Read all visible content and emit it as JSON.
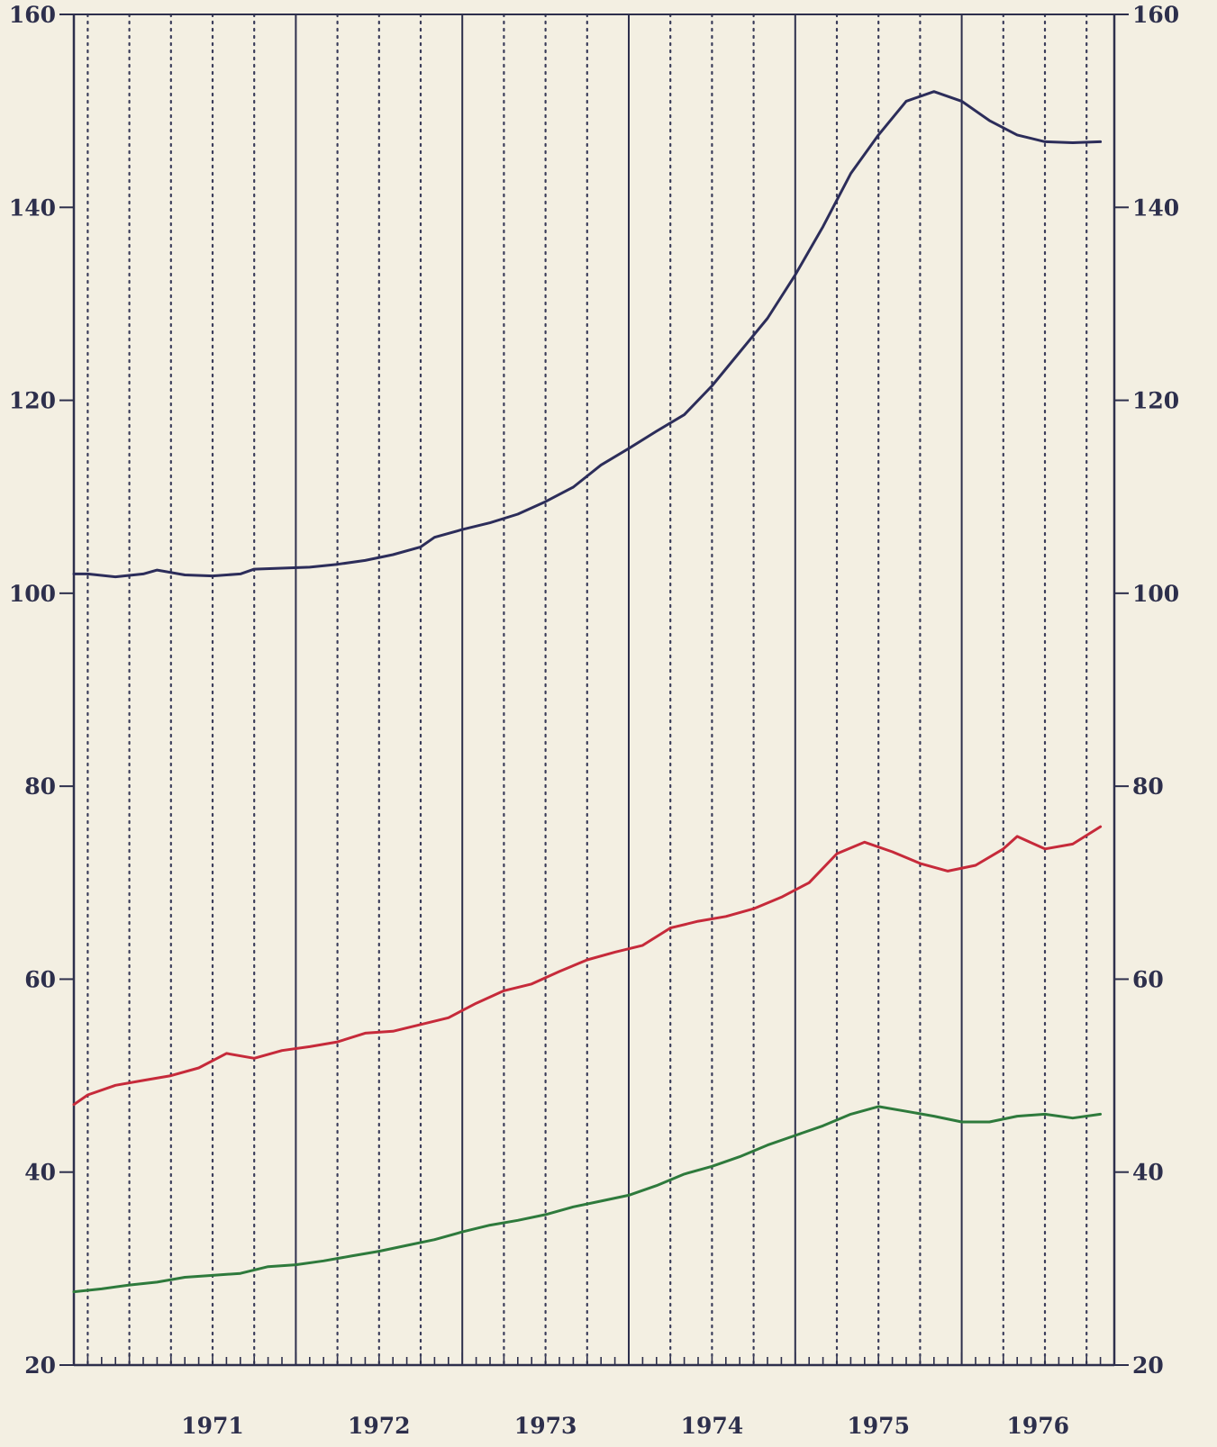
{
  "chart_data": {
    "type": "line",
    "title": "",
    "xlabel": "",
    "ylabel": "",
    "ylim": [
      20,
      160
    ],
    "y_ticks": [
      "20",
      "40",
      "60",
      "80",
      "100",
      "120",
      "140",
      "160"
    ],
    "y_axis_sides": "both",
    "x_start": "1970-09",
    "x_end": "1976-12",
    "year_labels": [
      "1971",
      "1972",
      "1973",
      "1974",
      "1975",
      "1976"
    ],
    "year_boundaries": [
      "1972-01",
      "1973-01",
      "1974-01",
      "1975-01",
      "1976-01"
    ],
    "quarter_gridlines": "dotted",
    "grid": true,
    "legend": "none",
    "colors": {
      "background": "#f3efe2",
      "axis": "#2d2f4c",
      "grid": "#3a3c5a"
    },
    "series": [
      {
        "color": "#2c2d5a",
        "points": [
          [
            "1970-09",
            102.0
          ],
          [
            "1970-10",
            102.0
          ],
          [
            "1970-12",
            101.7
          ],
          [
            "1971-02",
            102.0
          ],
          [
            "1971-03",
            102.4
          ],
          [
            "1971-05",
            101.9
          ],
          [
            "1971-07",
            101.8
          ],
          [
            "1971-09",
            102.0
          ],
          [
            "1971-10",
            102.5
          ],
          [
            "1971-12",
            102.6
          ],
          [
            "1972-02",
            102.7
          ],
          [
            "1972-04",
            103.0
          ],
          [
            "1972-06",
            103.4
          ],
          [
            "1972-08",
            104.0
          ],
          [
            "1972-10",
            104.8
          ],
          [
            "1972-11",
            105.8
          ],
          [
            "1973-01",
            106.6
          ],
          [
            "1973-03",
            107.3
          ],
          [
            "1973-05",
            108.2
          ],
          [
            "1973-07",
            109.5
          ],
          [
            "1973-09",
            111.0
          ],
          [
            "1973-11",
            113.3
          ],
          [
            "1974-01",
            115.0
          ],
          [
            "1974-03",
            116.8
          ],
          [
            "1974-05",
            118.5
          ],
          [
            "1974-07",
            121.5
          ],
          [
            "1974-09",
            125.0
          ],
          [
            "1974-11",
            128.5
          ],
          [
            "1975-01",
            133.0
          ],
          [
            "1975-03",
            138.0
          ],
          [
            "1975-05",
            143.5
          ],
          [
            "1975-07",
            147.5
          ],
          [
            "1975-09",
            151.0
          ],
          [
            "1975-11",
            152.0
          ],
          [
            "1976-01",
            151.0
          ],
          [
            "1976-03",
            149.0
          ],
          [
            "1976-05",
            147.5
          ],
          [
            "1976-07",
            146.8
          ],
          [
            "1976-09",
            146.7
          ],
          [
            "1976-11",
            146.8
          ]
        ]
      },
      {
        "color": "#c62a3a",
        "points": [
          [
            "1970-09",
            47.0
          ],
          [
            "1970-10",
            48.0
          ],
          [
            "1970-12",
            49.0
          ],
          [
            "1971-02",
            49.5
          ],
          [
            "1971-04",
            50.0
          ],
          [
            "1971-06",
            50.8
          ],
          [
            "1971-08",
            52.3
          ],
          [
            "1971-10",
            51.8
          ],
          [
            "1971-12",
            52.6
          ],
          [
            "1972-02",
            53.0
          ],
          [
            "1972-04",
            53.5
          ],
          [
            "1972-06",
            54.4
          ],
          [
            "1972-08",
            54.6
          ],
          [
            "1972-10",
            55.3
          ],
          [
            "1972-12",
            56.0
          ],
          [
            "1973-02",
            57.5
          ],
          [
            "1973-04",
            58.8
          ],
          [
            "1973-06",
            59.5
          ],
          [
            "1973-08",
            60.8
          ],
          [
            "1973-10",
            62.0
          ],
          [
            "1973-12",
            62.8
          ],
          [
            "1974-02",
            63.5
          ],
          [
            "1974-04",
            65.3
          ],
          [
            "1974-06",
            66.0
          ],
          [
            "1974-08",
            66.5
          ],
          [
            "1974-10",
            67.3
          ],
          [
            "1974-12",
            68.5
          ],
          [
            "1975-02",
            70.0
          ],
          [
            "1975-04",
            73.0
          ],
          [
            "1975-06",
            74.2
          ],
          [
            "1975-08",
            73.2
          ],
          [
            "1975-10",
            72.0
          ],
          [
            "1975-12",
            71.2
          ],
          [
            "1976-02",
            71.8
          ],
          [
            "1976-04",
            73.5
          ],
          [
            "1976-05",
            74.8
          ],
          [
            "1976-07",
            73.5
          ],
          [
            "1976-09",
            74.0
          ],
          [
            "1976-11",
            75.8
          ]
        ]
      },
      {
        "color": "#2e7a3c",
        "points": [
          [
            "1970-09",
            27.6
          ],
          [
            "1970-11",
            27.9
          ],
          [
            "1971-01",
            28.3
          ],
          [
            "1971-03",
            28.6
          ],
          [
            "1971-05",
            29.1
          ],
          [
            "1971-07",
            29.3
          ],
          [
            "1971-09",
            29.5
          ],
          [
            "1971-11",
            30.2
          ],
          [
            "1972-01",
            30.4
          ],
          [
            "1972-03",
            30.8
          ],
          [
            "1972-05",
            31.3
          ],
          [
            "1972-07",
            31.8
          ],
          [
            "1972-09",
            32.4
          ],
          [
            "1972-11",
            33.0
          ],
          [
            "1973-01",
            33.8
          ],
          [
            "1973-03",
            34.5
          ],
          [
            "1973-05",
            35.0
          ],
          [
            "1973-07",
            35.6
          ],
          [
            "1973-09",
            36.4
          ],
          [
            "1973-11",
            37.0
          ],
          [
            "1974-01",
            37.6
          ],
          [
            "1974-03",
            38.6
          ],
          [
            "1974-05",
            39.8
          ],
          [
            "1974-07",
            40.6
          ],
          [
            "1974-09",
            41.6
          ],
          [
            "1974-11",
            42.8
          ],
          [
            "1975-01",
            43.8
          ],
          [
            "1975-03",
            44.8
          ],
          [
            "1975-05",
            46.0
          ],
          [
            "1975-07",
            46.8
          ],
          [
            "1975-09",
            46.3
          ],
          [
            "1975-11",
            45.8
          ],
          [
            "1976-01",
            45.2
          ],
          [
            "1976-03",
            45.2
          ],
          [
            "1976-05",
            45.8
          ],
          [
            "1976-07",
            46.0
          ],
          [
            "1976-09",
            45.6
          ],
          [
            "1976-11",
            46.0
          ]
        ]
      }
    ]
  }
}
